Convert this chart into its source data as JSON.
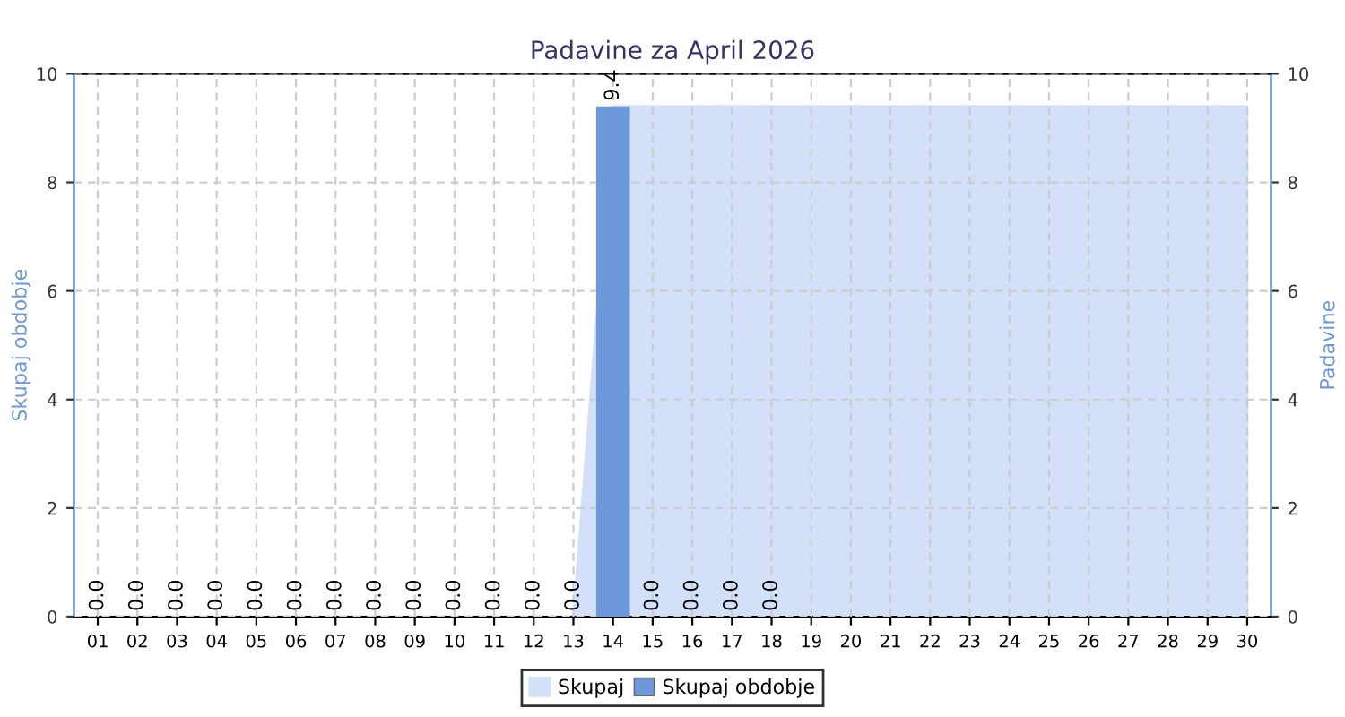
{
  "chart_data": {
    "type": "bar",
    "title": "Padavine za April 2026",
    "categories": [
      "01",
      "02",
      "03",
      "04",
      "05",
      "06",
      "07",
      "08",
      "09",
      "10",
      "11",
      "12",
      "13",
      "14",
      "15",
      "16",
      "17",
      "18",
      "19",
      "20",
      "21",
      "22",
      "23",
      "24",
      "25",
      "26",
      "27",
      "28",
      "29",
      "30"
    ],
    "series": [
      {
        "name": "Skupaj",
        "type": "area",
        "color": "#d2e0f9",
        "values": [
          0,
          0,
          0,
          0,
          0,
          0,
          0,
          0,
          0,
          0,
          0,
          0,
          0,
          9.4,
          9.4,
          9.4,
          9.4,
          9.4,
          9.4,
          9.4,
          9.4,
          9.4,
          9.4,
          9.4,
          9.4,
          9.4,
          9.4,
          9.4,
          9.4,
          9.4
        ]
      },
      {
        "name": "Skupaj obdobje",
        "color": "#6d98dc",
        "values": [
          0.0,
          0.0,
          0.0,
          0.0,
          0.0,
          0.0,
          0.0,
          0.0,
          0.0,
          0.0,
          0.0,
          0.0,
          0.0,
          9.4,
          0.0,
          0.0,
          0.0,
          0.0,
          null,
          null,
          null,
          null,
          null,
          null,
          null,
          null,
          null,
          null,
          null,
          null
        ],
        "value_labels": [
          "0.0",
          "0.0",
          "0.0",
          "0.0",
          "0.0",
          "0.0",
          "0.0",
          "0.0",
          "0.0",
          "0.0",
          "0.0",
          "0.0",
          "0.0",
          "9.4",
          "0.0",
          "0.0",
          "0.0",
          "0.0",
          null,
          null,
          null,
          null,
          null,
          null,
          null,
          null,
          null,
          null,
          null,
          null
        ]
      }
    ],
    "ylabel": "Skupaj obdobje",
    "y2label": "Padavine",
    "ylim": [
      0,
      10
    ],
    "yticks": [
      0,
      2,
      4,
      6,
      8,
      10
    ],
    "y2lim": [
      0,
      10
    ],
    "y2ticks": [
      0,
      2,
      4,
      6,
      8,
      10
    ],
    "grid": true,
    "legend": "bottom"
  }
}
